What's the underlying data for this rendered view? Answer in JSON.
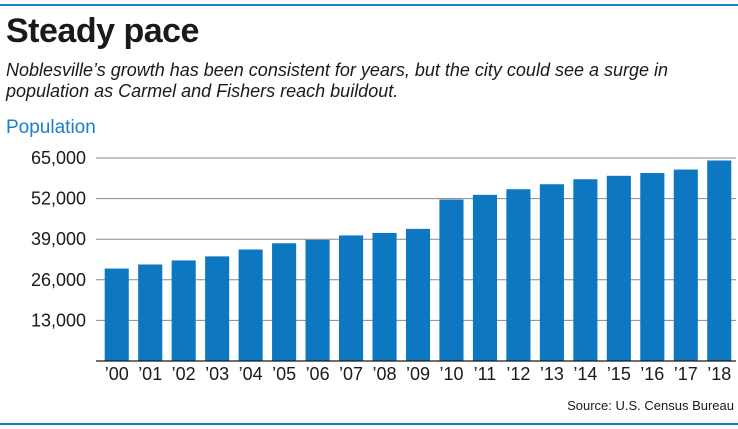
{
  "colors": {
    "accent": "#1a7fc8",
    "rule": "#1a7fc8",
    "bar": "#0d77c2",
    "grid": "#888888"
  },
  "chart_data": {
    "type": "bar",
    "title": "Steady pace",
    "subtitle": "Noblesville’s growth has been consistent for years, but the city could see a surge in population as Carmel and Fishers reach buildout.",
    "ylabel": "Population",
    "xlabel": "",
    "categories": [
      "’00",
      "’01",
      "’02",
      "’03",
      "’04",
      "’05",
      "’06",
      "’07",
      "’08",
      "’09",
      "’10",
      "’11",
      "’12",
      "’13",
      "’14",
      "’15",
      "’16",
      "’17",
      "’18"
    ],
    "values": [
      29600,
      30900,
      32200,
      33500,
      35700,
      37700,
      38800,
      40200,
      41000,
      42300,
      51700,
      53200,
      55000,
      56600,
      58200,
      59300,
      60200,
      61300,
      64200
    ],
    "ylim": [
      0,
      65000
    ],
    "yticks": [
      "13,000",
      "26,000",
      "39,000",
      "52,000",
      "65,000"
    ],
    "ytick_values": [
      13000,
      26000,
      39000,
      52000,
      65000
    ],
    "grid": true,
    "source": "Source: U.S. Census Bureau"
  }
}
